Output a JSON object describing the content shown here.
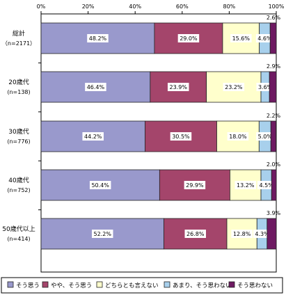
{
  "chart_data": {
    "type": "bar",
    "orientation": "horizontal",
    "stacked": true,
    "percent": true,
    "xlim": [
      0,
      100
    ],
    "x_ticks": [
      "0%",
      "20%",
      "40%",
      "60%",
      "80%",
      "100%"
    ],
    "grid": false,
    "legend_position": "bottom",
    "categories": [
      [
        "総計",
        "（n=2171）"
      ],
      [
        "20歳代",
        "(n=138)"
      ],
      [
        "30歳代",
        "(n=776)"
      ],
      [
        "40歳代",
        "(n=752)"
      ],
      [
        "50歳代以上",
        "(n=414)"
      ]
    ],
    "series": [
      {
        "name": "そう思う",
        "color": "#9999cc",
        "values": [
          48.2,
          46.4,
          44.2,
          50.4,
          52.2
        ],
        "labels": [
          "48.2%",
          "46.4%",
          "44.2%",
          "50.4%",
          "52.2%"
        ]
      },
      {
        "name": "やや、そう思う",
        "color": "#a4456b",
        "values": [
          29.0,
          23.9,
          30.5,
          29.9,
          26.8
        ],
        "labels": [
          "29.0%",
          "23.9%",
          "30.5%",
          "29.9%",
          "26.8%"
        ]
      },
      {
        "name": "どちらとも言えない",
        "color": "#ffffcc",
        "values": [
          15.6,
          23.2,
          18.0,
          13.2,
          12.8
        ],
        "labels": [
          "15.6%",
          "23.2%",
          "18.0%",
          "13.2%",
          "12.8%"
        ]
      },
      {
        "name": "あまり、そう思わない",
        "color": "#a8d0ec",
        "values": [
          4.6,
          3.6,
          5.0,
          4.5,
          4.3
        ],
        "labels": [
          "4.6%",
          "3.6%",
          "5.0%",
          "4.5%",
          "4.3%"
        ]
      },
      {
        "name": "そう思わない",
        "color": "#6e1a62",
        "values": [
          2.6,
          2.9,
          2.2,
          2.0,
          3.9
        ],
        "labels": [
          "2.6%",
          "2.9%",
          "2.2%",
          "2.0%",
          "3.9%"
        ]
      }
    ]
  }
}
